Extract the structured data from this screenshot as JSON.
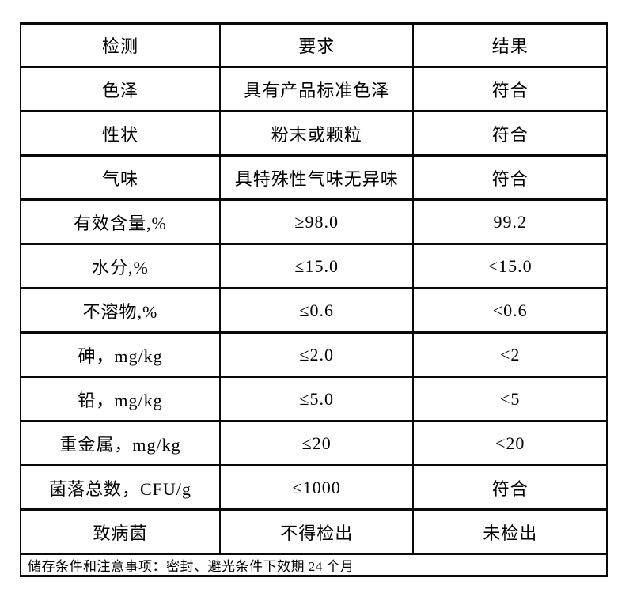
{
  "table": {
    "columns": [
      {
        "label": "检测"
      },
      {
        "label": "要求"
      },
      {
        "label": "结果"
      }
    ],
    "rows": [
      {
        "test": "色泽",
        "requirement": "具有产品标准色泽",
        "result": "符合"
      },
      {
        "test": "性状",
        "requirement": "粉末或颗粒",
        "result": "符合"
      },
      {
        "test": "气味",
        "requirement": "具特殊性气味无异味",
        "result": "符合"
      },
      {
        "test": "有效含量,%",
        "requirement": "≥98.0",
        "result": "99.2"
      },
      {
        "test": "水分,%",
        "requirement": "≤15.0",
        "result": "<15.0"
      },
      {
        "test": "不溶物,%",
        "requirement": "≤0.6",
        "result": "<0.6"
      },
      {
        "test": "砷，mg/kg",
        "requirement": "≤2.0",
        "result": "<2"
      },
      {
        "test": "铅，mg/kg",
        "requirement": "≤5.0",
        "result": "<5"
      },
      {
        "test": "重金属，mg/kg",
        "requirement": "≤20",
        "result": "<20"
      },
      {
        "test": "菌落总数，CFU/g",
        "requirement": "≤1000",
        "result": "符合"
      },
      {
        "test": "致病菌",
        "requirement": "不得检出",
        "result": "未检出"
      }
    ],
    "footer_note": "储存条件和注意事项：密封、避光条件下效期 24 个月",
    "border_color": "#0a0a0a",
    "background_color": "#ffffff"
  }
}
